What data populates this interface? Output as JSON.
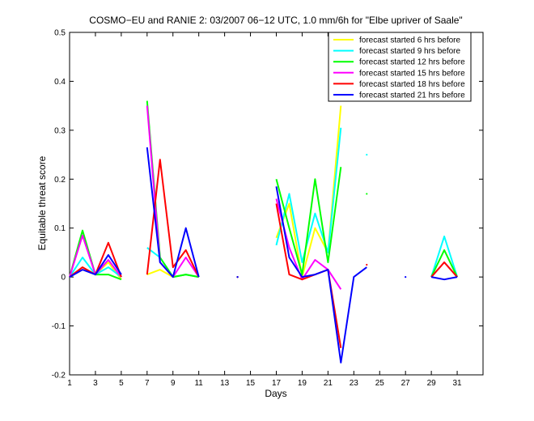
{
  "chart_data": {
    "type": "line",
    "title": "COSMO−EU and RANIE 2: 03/2007 06−12 UTC, 1.0 mm/6h for \"Elbe upriver of Saale\"",
    "xlabel": "Days",
    "ylabel": "Equitable threat score",
    "xlim": [
      1,
      33
    ],
    "ylim": [
      -0.2,
      0.5
    ],
    "xticks": [
      1,
      3,
      5,
      7,
      9,
      11,
      13,
      15,
      17,
      19,
      21,
      23,
      25,
      27,
      29,
      31
    ],
    "yticks": [
      -0.2,
      -0.1,
      0,
      0.1,
      0.2,
      0.3,
      0.4,
      0.5
    ],
    "x": [
      1,
      2,
      3,
      4,
      5,
      6,
      7,
      8,
      9,
      10,
      11,
      12,
      13,
      14,
      15,
      16,
      17,
      18,
      19,
      20,
      21,
      22,
      23,
      24,
      25,
      26,
      27,
      28,
      29,
      30,
      31
    ],
    "legend_position": "top-right",
    "grid": false,
    "series": [
      {
        "name": "forecast started 6 hrs before",
        "color": "#ffff00",
        "values": [
          0,
          0.02,
          0.005,
          0.03,
          -0.005,
          null,
          0.005,
          0.015,
          0,
          0.005,
          0,
          null,
          null,
          0,
          null,
          null,
          0.08,
          0.15,
          0,
          0.1,
          0.05,
          0.35,
          null,
          null,
          null,
          null,
          null,
          null,
          0,
          0.03,
          0
        ]
      },
      {
        "name": "forecast started 9 hrs before",
        "color": "#00ffff",
        "values": [
          0,
          0.04,
          0.005,
          0.02,
          0,
          null,
          0.06,
          0.04,
          0,
          0.005,
          0,
          null,
          null,
          0,
          null,
          null,
          0.065,
          0.17,
          0.03,
          0.13,
          0.05,
          0.305,
          null,
          0.25,
          null,
          null,
          null,
          null,
          0,
          0.083,
          0
        ]
      },
      {
        "name": "forecast started 12 hrs before",
        "color": "#00ff00",
        "values": [
          0,
          0.095,
          0.005,
          0.005,
          -0.005,
          null,
          0.36,
          0.04,
          0,
          0.005,
          0,
          null,
          null,
          0,
          null,
          null,
          0.2,
          0.1,
          0.005,
          0.2,
          0.03,
          0.225,
          null,
          0.17,
          null,
          null,
          null,
          null,
          0,
          0.055,
          0
        ]
      },
      {
        "name": "forecast started 15 hrs before",
        "color": "#ff00ff",
        "values": [
          0,
          0.085,
          0.005,
          0.035,
          0,
          null,
          0.35,
          0.03,
          0,
          0.04,
          0,
          null,
          null,
          0,
          null,
          null,
          0.16,
          0.06,
          -0.005,
          0.035,
          0.015,
          -0.025,
          null,
          null,
          null,
          null,
          null,
          null,
          0,
          0.03,
          0
        ]
      },
      {
        "name": "forecast started 18 hrs before",
        "color": "#ff0000",
        "values": [
          0,
          0.02,
          0.005,
          0.07,
          0,
          null,
          0.005,
          0.24,
          0.02,
          0.055,
          0,
          null,
          null,
          0,
          null,
          null,
          0.15,
          0.005,
          -0.005,
          0.005,
          0.015,
          -0.145,
          null,
          0.025,
          null,
          null,
          null,
          null,
          0,
          0.03,
          0
        ]
      },
      {
        "name": "forecast started 21 hrs before",
        "color": "#0000ff",
        "values": [
          0,
          0.015,
          0.005,
          0.045,
          0.005,
          null,
          0.265,
          0.03,
          0,
          0.1,
          0,
          null,
          null,
          0,
          null,
          null,
          0.185,
          0.04,
          0,
          0.005,
          0.015,
          -0.175,
          0,
          0.02,
          null,
          null,
          0,
          null,
          0,
          -0.005,
          0
        ]
      }
    ]
  }
}
